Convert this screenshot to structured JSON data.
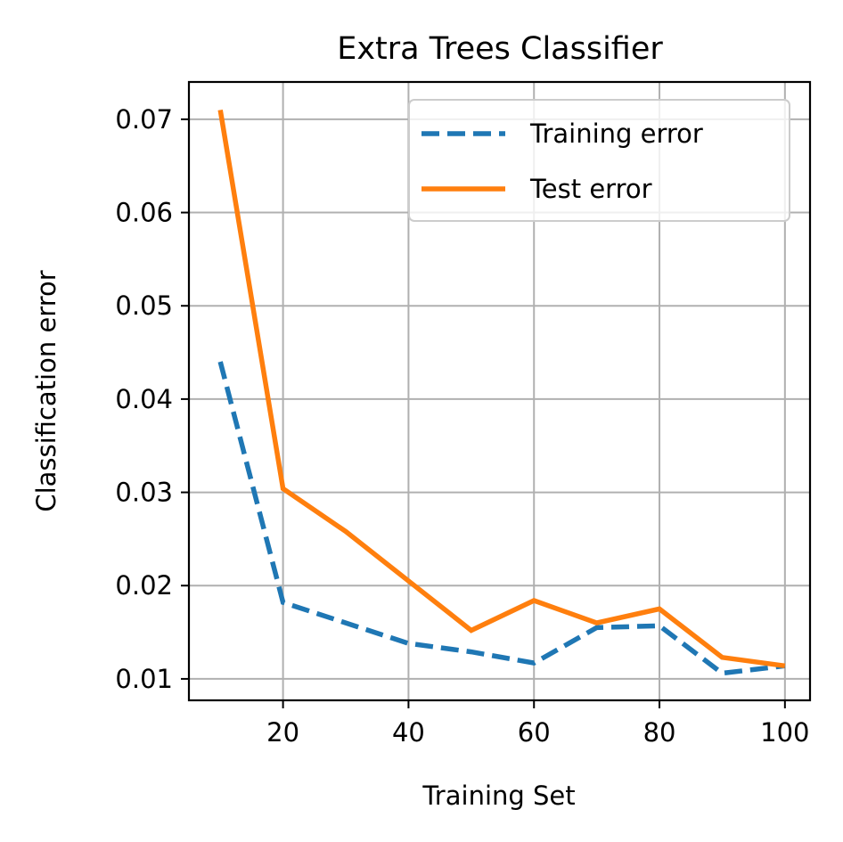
{
  "chart_data": {
    "type": "line",
    "title": "Extra Trees Classifier",
    "xlabel": "Training Set",
    "ylabel": "Classification error",
    "xlim": [
      5,
      104
    ],
    "ylim": [
      0.0077,
      0.074
    ],
    "xticks": [
      20,
      40,
      60,
      80,
      100
    ],
    "yticks": [
      0.01,
      0.02,
      0.03,
      0.04,
      0.05,
      0.06,
      0.07
    ],
    "xtick_labels": [
      "20",
      "40",
      "60",
      "80",
      "100"
    ],
    "ytick_labels": [
      "0.01",
      "0.02",
      "0.03",
      "0.04",
      "0.05",
      "0.06",
      "0.07"
    ],
    "grid": true,
    "legend": "top-right",
    "x": [
      10,
      20,
      30,
      40,
      50,
      60,
      70,
      80,
      90,
      100
    ],
    "series": [
      {
        "name": "Training error",
        "color": "#1f77b4",
        "style": "dashed",
        "values": [
          0.044,
          0.0182,
          0.016,
          0.0138,
          0.0129,
          0.0117,
          0.0155,
          0.0157,
          0.0106,
          0.0114
        ]
      },
      {
        "name": "Test error",
        "color": "#ff7f0e",
        "style": "solid",
        "values": [
          0.071,
          0.0304,
          0.0258,
          0.0205,
          0.0152,
          0.0184,
          0.016,
          0.0175,
          0.0123,
          0.0114
        ]
      }
    ]
  }
}
